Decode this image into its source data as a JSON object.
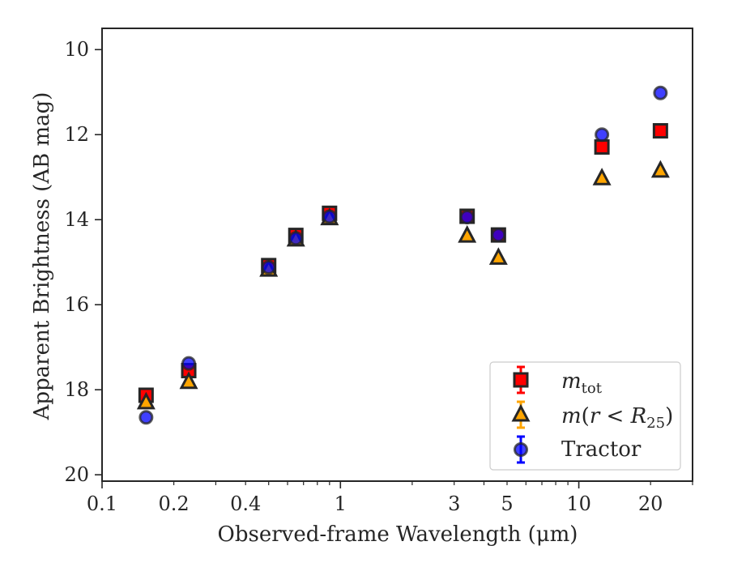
{
  "chart_data": {
    "type": "scatter",
    "xlabel": "Observed-frame Wavelength (μm)",
    "ylabel": "Apparent Brightness (AB mag)",
    "xscale": "log",
    "xlim": [
      0.1,
      30
    ],
    "ylim": [
      20.15,
      9.5
    ],
    "y_inverted": true,
    "xticks": [
      0.1,
      0.2,
      0.4,
      1,
      3,
      5,
      10,
      20
    ],
    "xtick_labels": [
      "0.1",
      "0.2",
      "0.4",
      "1",
      "3",
      "5",
      "10",
      "20"
    ],
    "yticks": [
      10,
      12,
      14,
      16,
      18,
      20
    ],
    "ytick_labels": [
      "10",
      "12",
      "14",
      "16",
      "18",
      "20"
    ],
    "grid": false,
    "legend_position": "lower-right",
    "series": [
      {
        "name": "m_tot",
        "legend_label": "mtot",
        "marker": "square",
        "color": "#ff0000",
        "edgecolor": "#262626",
        "points": [
          {
            "x": 0.153,
            "y": 18.13
          },
          {
            "x": 0.231,
            "y": 17.55
          },
          {
            "x": 0.5,
            "y": 15.08
          },
          {
            "x": 0.65,
            "y": 14.37
          },
          {
            "x": 0.9,
            "y": 13.85
          },
          {
            "x": 3.4,
            "y": 13.92
          },
          {
            "x": 4.6,
            "y": 14.36
          },
          {
            "x": 12.5,
            "y": 12.29
          },
          {
            "x": 22.0,
            "y": 11.91
          }
        ]
      },
      {
        "name": "m(r < R25)",
        "legend_label": "m(r<R25)",
        "marker": "triangle",
        "color": "#ffa500",
        "edgecolor": "#262626",
        "points": [
          {
            "x": 0.153,
            "y": 18.3
          },
          {
            "x": 0.231,
            "y": 17.82
          },
          {
            "x": 0.5,
            "y": 15.18
          },
          {
            "x": 0.65,
            "y": 14.47
          },
          {
            "x": 0.9,
            "y": 13.97
          },
          {
            "x": 3.4,
            "y": 14.38
          },
          {
            "x": 4.6,
            "y": 14.9
          },
          {
            "x": 12.5,
            "y": 13.03
          },
          {
            "x": 22.0,
            "y": 12.85
          }
        ]
      },
      {
        "name": "Tractor",
        "legend_label": "Tractor",
        "marker": "circle",
        "color": "#0000ff",
        "edgecolor": "#262626",
        "points": [
          {
            "x": 0.153,
            "y": 18.65
          },
          {
            "x": 0.231,
            "y": 17.38
          },
          {
            "x": 0.5,
            "y": 15.12
          },
          {
            "x": 0.65,
            "y": 14.44
          },
          {
            "x": 0.9,
            "y": 13.93
          },
          {
            "x": 3.4,
            "y": 13.94
          },
          {
            "x": 4.6,
            "y": 14.36
          },
          {
            "x": 12.5,
            "y": 12.0
          },
          {
            "x": 22.0,
            "y": 11.02
          }
        ]
      }
    ]
  }
}
